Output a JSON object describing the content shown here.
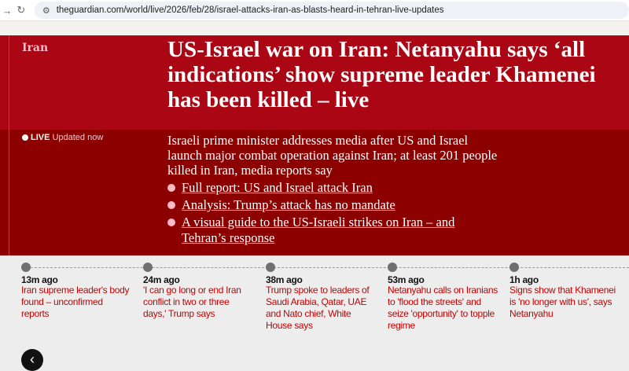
{
  "browser": {
    "url": "theguardian.com/world/live/2026/feb/28/israel-attacks-iran-as-blasts-heard-in-tehran-live-updates"
  },
  "article": {
    "kicker": "Iran",
    "title": "US-Israel war on Iran: Netanyahu says ‘all indications’ show supreme leader Khamenei has been killed – live",
    "live_label": "LIVE",
    "updated": "Updated now",
    "standfirst": "Israeli prime minister addresses media after US and Israel launch major combat operation against Iran; at least 201 people killed in Iran, media reports say",
    "links": [
      "Full report: US and Israel attack Iran",
      "Analysis: Trump’s attack has no mandate",
      "A visual guide to the US-Israeli strikes on Iran – and Tehran’s response"
    ]
  },
  "timeline": [
    {
      "time": "13m ago",
      "headline": "Iran supreme leader's body found – unconfirmed reports"
    },
    {
      "time": "24m ago",
      "headline": "'I can go long or end Iran conflict in two or three days,' Trump says"
    },
    {
      "time": "38m ago",
      "headline": "Trump spoke to leaders of Saudi Arabia, Qatar, UAE and Nato chief, White House says"
    },
    {
      "time": "53m ago",
      "headline": "Netanyahu calls on Iranians to 'flood the streets' and seize 'opportunity' to topple regime"
    },
    {
      "time": "1h ago",
      "headline": "Signs show that Khamenei is 'no longer with us', says Netanyahu"
    }
  ],
  "colors": {
    "header": "#ab0613",
    "subheader": "#8d0000",
    "accent": "#c70000",
    "kicker": "#ffbac8"
  }
}
